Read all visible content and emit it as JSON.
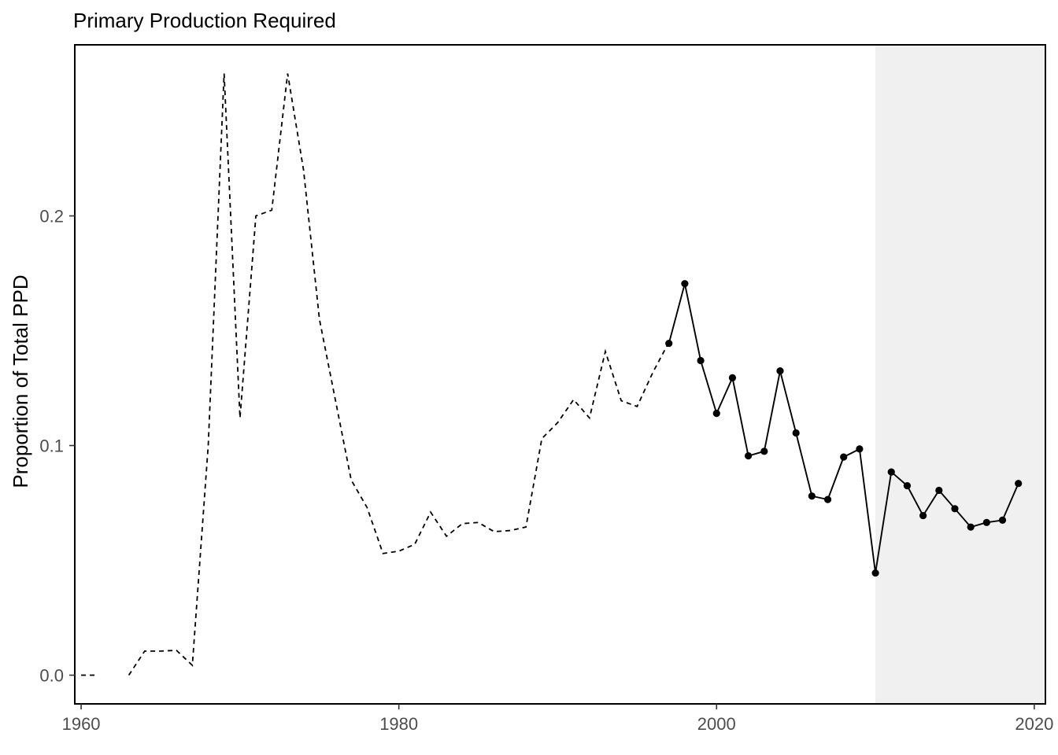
{
  "chart_data": {
    "type": "line",
    "title": "Primary Production Required",
    "xlabel": "",
    "ylabel": "Proportion of Total PPD",
    "xlim": [
      1959.6,
      2020.7
    ],
    "ylim": [
      -0.0125,
      0.2745
    ],
    "x_ticks": [
      1960,
      1980,
      2000,
      2020
    ],
    "x_tick_labels": [
      "1960",
      "1980",
      "2000",
      "2020"
    ],
    "y_ticks": [
      0.0,
      0.1,
      0.2
    ],
    "y_tick_labels": [
      "0.0",
      "0.1",
      "0.2"
    ],
    "grid": false,
    "shaded_region": {
      "x": [
        2010,
        2020.7
      ],
      "color": "#f0f0f0"
    },
    "series": [
      {
        "style": "dashed",
        "x": [
          1960,
          1961,
          null,
          1963,
          1964,
          1965,
          1966,
          1967,
          1968,
          1969,
          1970,
          1971,
          1972,
          1973,
          1974,
          1975,
          1976,
          1977,
          1978,
          1979,
          1980,
          1981,
          1982,
          1983,
          1984,
          1985,
          1986,
          1987,
          1988,
          1989,
          1990,
          1991,
          1992,
          1993,
          1994,
          1995,
          1996,
          1997
        ],
        "y": [
          0.0,
          0.0,
          null,
          0.0,
          0.0105,
          0.0105,
          0.0108,
          0.0043,
          0.1,
          0.262,
          0.112,
          0.2,
          0.2025,
          0.262,
          0.22,
          0.155,
          0.12,
          0.085,
          0.073,
          0.053,
          0.054,
          0.057,
          0.071,
          0.0605,
          0.066,
          0.0665,
          0.0625,
          0.063,
          0.0645,
          0.103,
          0.11,
          0.12,
          0.112,
          0.141,
          0.1195,
          0.117,
          0.132,
          0.145
        ]
      },
      {
        "style": "solid-points",
        "x": [
          1997,
          1998,
          1999,
          2000,
          2001,
          2002,
          2003,
          2004,
          2005,
          2006,
          2007,
          2008,
          2009,
          2010,
          2011,
          2012,
          2013,
          2014,
          2015,
          2016,
          2017,
          2018,
          2019
        ],
        "y": [
          0.1445,
          0.1705,
          0.137,
          0.114,
          0.1295,
          0.0955,
          0.0975,
          0.1325,
          0.1055,
          0.078,
          0.0765,
          0.095,
          0.0985,
          0.0445,
          0.0885,
          0.0825,
          0.0695,
          0.0805,
          0.0725,
          0.0645,
          0.0665,
          0.0675,
          0.0835
        ]
      }
    ],
    "colors": {
      "line": "#000000",
      "frame": "#000000",
      "shade": "#f0f0f0",
      "tick_text": "#4d4d4d"
    }
  }
}
